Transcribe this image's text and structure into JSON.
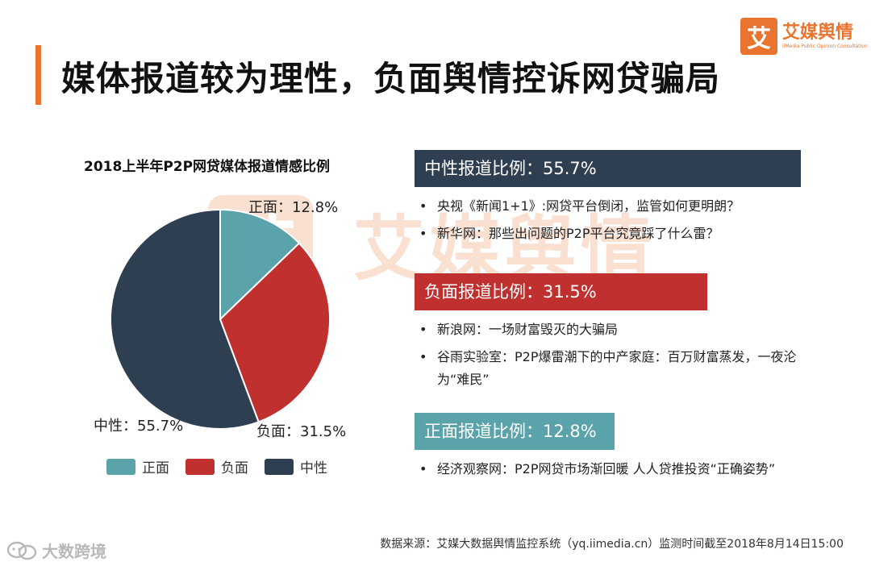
{
  "page": {
    "title": "媒体报道较为理性，负面舆情控诉网贷骗局",
    "accent_color": "#e8742f"
  },
  "logo": {
    "mark": "艾",
    "name": "艾媒舆情",
    "subtitle": "iiMedia Public Opinion Consultation"
  },
  "watermark": {
    "mark": "艾",
    "name": "艾媒舆情"
  },
  "chart_data": {
    "type": "pie",
    "title": "2018上半年P2P网贷媒体报道情感比例",
    "slices": [
      {
        "name": "正面",
        "value": 12.8,
        "label": "正面：12.8%",
        "color": "#5ba3ab"
      },
      {
        "name": "负面",
        "value": 31.5,
        "label": "负面：31.5%",
        "color": "#c0302f"
      },
      {
        "name": "中性",
        "value": 55.7,
        "label": "中性：55.7%",
        "color": "#2f3f52"
      }
    ],
    "start_angle_deg": 0,
    "direction": "clockwise",
    "legend": {
      "placement": "bottom",
      "items": [
        "正面",
        "负面",
        "中性"
      ]
    }
  },
  "panels": [
    {
      "header": "中性报道比例：55.7%",
      "color": "#2f3f52",
      "items": [
        "央视《新闻1+1》:网贷平台倒闭，监管如何更明朗？",
        "新华网：那些出问题的P2P平台究竟踩了什么雷？"
      ]
    },
    {
      "header": "负面报道比例：31.5%",
      "color": "#c0302f",
      "items": [
        "新浪网：一场财富毁灭的大骗局",
        "谷雨实验室：P2P爆雷潮下的中产家庭：百万财富蒸发，一夜沦为“难民”"
      ]
    },
    {
      "header": "正面报道比例：12.8%",
      "color": "#5ba3ab",
      "items": [
        "经济观察网：P2P网贷市场渐回暖 人人贷推投资“正确姿势”"
      ]
    }
  ],
  "source": "数据来源：艾媒大数据舆情监控系统（yq.iimedia.cn）监测时间截至2018年8月14日15:00",
  "brand_corner": "大数跨境"
}
